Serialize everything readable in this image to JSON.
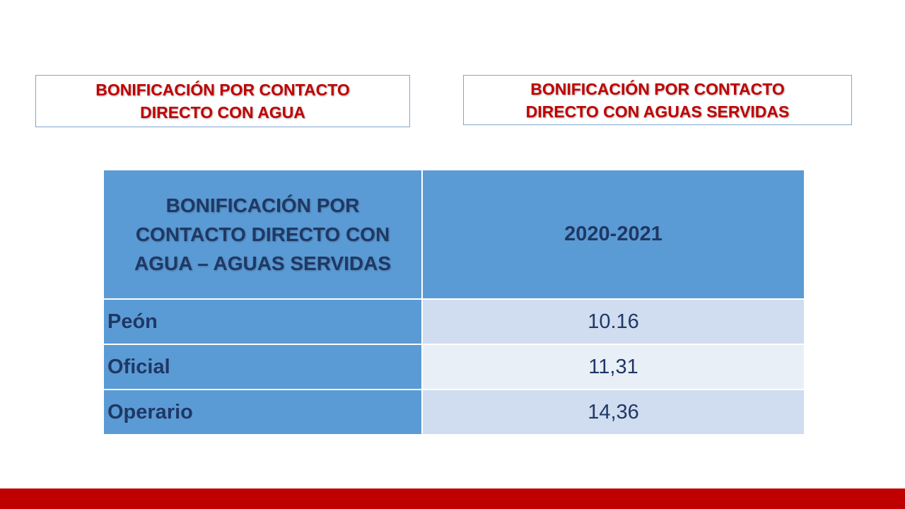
{
  "boxes": {
    "left": {
      "line1": "BONIFICACIÓN POR CONTACTO",
      "line2": "DIRECTO CON AGUA"
    },
    "right": {
      "line1": "BONIFICACIÓN POR CONTACTO",
      "line2": "DIRECTO CON AGUAS SERVIDAS"
    }
  },
  "table": {
    "header": {
      "label_lines": [
        "BONIFICACIÓN POR",
        "CONTACTO DIRECTO CON",
        "AGUA – AGUAS SERVIDAS"
      ],
      "period": "2020-2021"
    },
    "rows": [
      {
        "label": "Peón",
        "value": "10.16"
      },
      {
        "label": "Oficial",
        "value": "11,31"
      },
      {
        "label": "Operario",
        "value": "14,36"
      }
    ]
  },
  "colors": {
    "title_red": "#c00000",
    "header_blue": "#5b9bd5",
    "text_navy": "#1f3864",
    "row_light": "#d0dcef",
    "row_lighter": "#e9eff7",
    "footer_red": "#c00000"
  }
}
